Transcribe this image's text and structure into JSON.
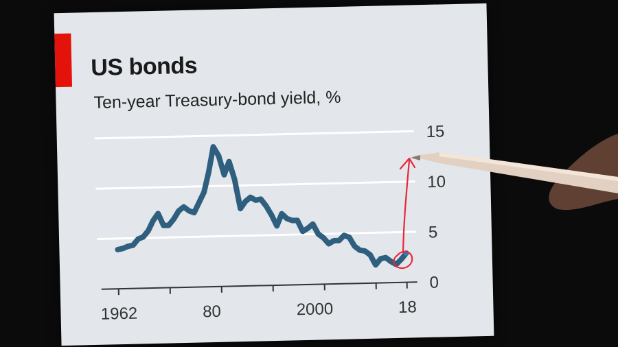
{
  "chart_data": {
    "type": "line",
    "title": "US bonds",
    "subtitle": "Ten-year Treasury-bond yield, %",
    "xlabel": "",
    "ylabel": "",
    "x_tick_labels": [
      "1962",
      "80",
      "2000",
      "18"
    ],
    "y_tick_labels": [
      "0",
      "5",
      "10",
      "15"
    ],
    "xlim": [
      1962,
      2018
    ],
    "ylim": [
      0,
      15
    ],
    "grid": true,
    "legend": "none",
    "colors": {
      "line": "#2f5f7e",
      "grid": "#ffffff",
      "accent": "#e3120b",
      "annotation": "#e8283a"
    },
    "series": [
      {
        "x": [
          1962,
          1963,
          1964,
          1965,
          1966,
          1967,
          1968,
          1969,
          1970,
          1971,
          1972,
          1973,
          1974,
          1975,
          1976,
          1977,
          1978,
          1979,
          1980,
          1981,
          1982,
          1983,
          1984,
          1985,
          1986,
          1987,
          1988,
          1989,
          1990,
          1991,
          1992,
          1993,
          1994,
          1995,
          1996,
          1997,
          1998,
          1999,
          2000,
          2001,
          2002,
          2003,
          2004,
          2005,
          2006,
          2007,
          2008,
          2009,
          2010,
          2011,
          2012,
          2013,
          2014,
          2015,
          2016,
          2017,
          2018
        ],
        "values": [
          3.9,
          4.0,
          4.2,
          4.3,
          4.9,
          5.1,
          5.7,
          6.7,
          7.4,
          6.2,
          6.2,
          6.8,
          7.6,
          8.0,
          7.6,
          7.4,
          8.4,
          9.4,
          11.4,
          13.9,
          13.0,
          11.1,
          12.4,
          10.6,
          7.7,
          8.4,
          8.8,
          8.5,
          8.6,
          7.9,
          7.0,
          5.9,
          7.1,
          6.6,
          6.4,
          6.4,
          5.3,
          5.6,
          6.0,
          5.0,
          4.6,
          4.0,
          4.3,
          4.3,
          4.8,
          4.6,
          3.7,
          3.3,
          3.2,
          2.8,
          1.8,
          2.4,
          2.5,
          2.1,
          1.8,
          2.3,
          2.9
        ]
      }
    ]
  }
}
